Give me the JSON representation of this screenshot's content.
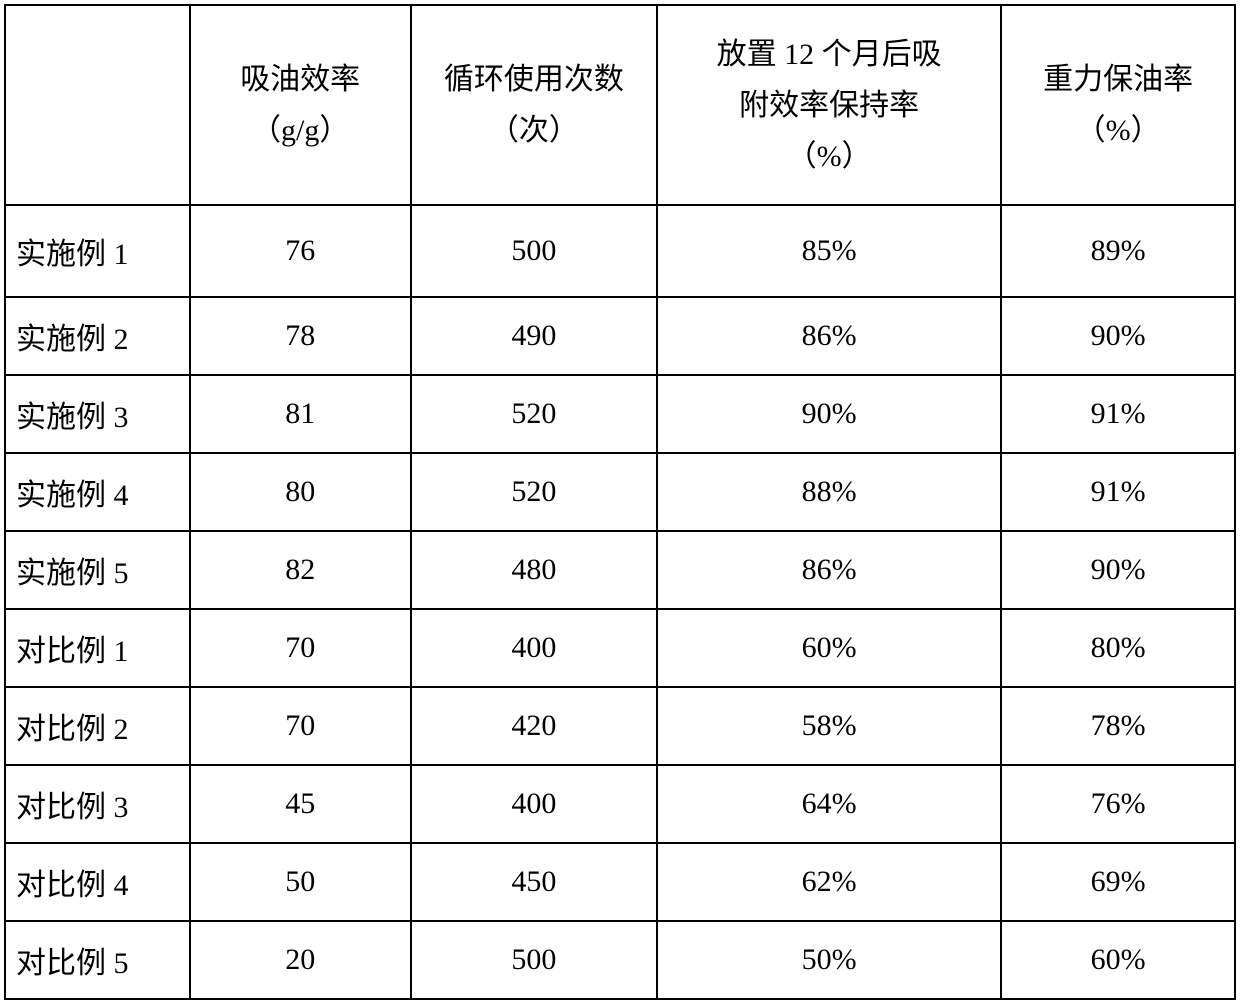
{
  "table": {
    "type": "table",
    "columns": [
      {
        "label": "",
        "width": "15%",
        "align": "left"
      },
      {
        "label": "吸油效率\n（g/g）",
        "width": "18%",
        "align": "center"
      },
      {
        "label": "循环使用次数\n（次）",
        "width": "20%",
        "align": "center"
      },
      {
        "label": "放置 12 个月后吸\n附效率保持率\n（%）",
        "width": "28%",
        "align": "center"
      },
      {
        "label": "重力保油率\n（%）",
        "width": "19%",
        "align": "center"
      }
    ],
    "header_labels": {
      "c0": "",
      "c1_line1": "吸油效率",
      "c1_line2": "（g/g）",
      "c2_line1": "循环使用次数",
      "c2_line2": "（次）",
      "c3_line1": "放置 12 个月后吸",
      "c3_line2": "附效率保持率",
      "c3_line3": "（%）",
      "c4_line1": "重力保油率",
      "c4_line2": "（%）"
    },
    "rows": [
      {
        "label": "实施例 1",
        "c1": "76",
        "c2": "500",
        "c3": "85%",
        "c4": "89%"
      },
      {
        "label": "实施例 2",
        "c1": "78",
        "c2": "490",
        "c3": "86%",
        "c4": "90%"
      },
      {
        "label": "实施例 3",
        "c1": "81",
        "c2": "520",
        "c3": "90%",
        "c4": "91%"
      },
      {
        "label": "实施例 4",
        "c1": "80",
        "c2": "520",
        "c3": "88%",
        "c4": "91%"
      },
      {
        "label": "实施例 5",
        "c1": "82",
        "c2": "480",
        "c3": "86%",
        "c4": "90%"
      },
      {
        "label": "对比例 1",
        "c1": "70",
        "c2": "400",
        "c3": "60%",
        "c4": "80%"
      },
      {
        "label": "对比例 2",
        "c1": "70",
        "c2": "420",
        "c3": "58%",
        "c4": "78%"
      },
      {
        "label": "对比例 3",
        "c1": "45",
        "c2": "400",
        "c3": "64%",
        "c4": "76%"
      },
      {
        "label": "对比例 4",
        "c1": "50",
        "c2": "450",
        "c3": "62%",
        "c4": "69%"
      },
      {
        "label": "对比例 5",
        "c1": "20",
        "c2": "500",
        "c3": "50%",
        "c4": "60%"
      }
    ],
    "styling": {
      "border_color": "#000000",
      "border_width": 2,
      "background_color": "#ffffff",
      "text_color": "#000000",
      "font_size_pt": 22,
      "font_family": "SimSun",
      "header_row_height": 200,
      "data_row_height": 78,
      "first_data_row_height": 92
    }
  }
}
